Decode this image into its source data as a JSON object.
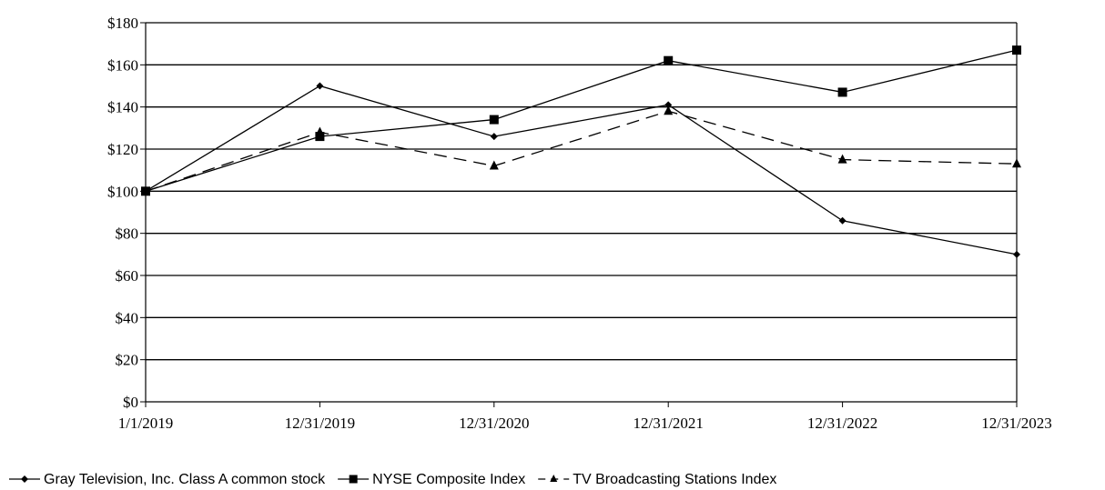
{
  "chart_data": {
    "type": "line",
    "categories": [
      "1/1/2019",
      "12/31/2019",
      "12/31/2020",
      "12/31/2021",
      "12/31/2022",
      "12/31/2023"
    ],
    "ylim": [
      0,
      180
    ],
    "y_ticks": [
      "$0",
      "$20",
      "$40",
      "$60",
      "$80",
      "$100",
      "$120",
      "$140",
      "$160",
      "$180"
    ],
    "y_tick_values": [
      0,
      20,
      40,
      60,
      80,
      100,
      120,
      140,
      160,
      180
    ],
    "grid": true,
    "legend_position": "bottom",
    "series": [
      {
        "name": "Gray Television, Inc. Class A common stock",
        "values": [
          100,
          150,
          126,
          141,
          86,
          70
        ],
        "marker": "diamond",
        "line_style": "solid"
      },
      {
        "name": "NYSE Composite Index",
        "values": [
          100,
          126,
          134,
          162,
          147,
          167
        ],
        "marker": "square",
        "line_style": "solid"
      },
      {
        "name": "TV Broadcasting Stations Index",
        "values": [
          100,
          128,
          112,
          138,
          115,
          113
        ],
        "marker": "triangle",
        "line_style": "dashed"
      }
    ]
  }
}
